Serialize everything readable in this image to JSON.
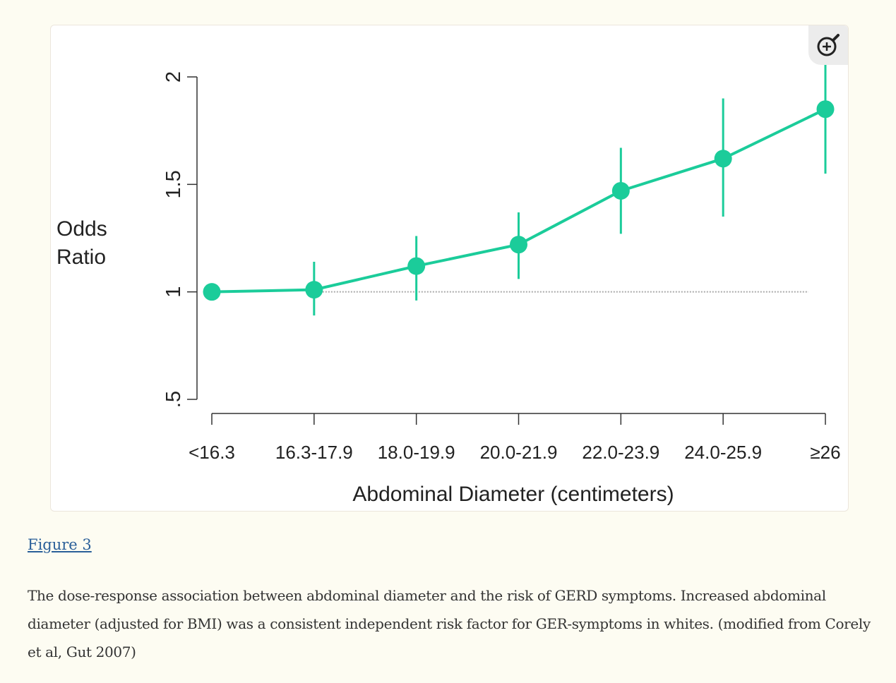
{
  "figure": {
    "link_label": "Figure 3",
    "caption": "The dose-response association between abdominal diameter and the risk of GERD symptoms. Increased abdominal diameter (adjusted for BMI) was a consistent independent risk factor for GER-symptoms in whites. (modified from Corely et al, Gut 2007)",
    "zoom_icon": "zoom-in-icon"
  },
  "chart_data": {
    "type": "line",
    "title": "",
    "xlabel": "Abdominal Diameter (centimeters)",
    "ylabel_lines": [
      "Odds",
      "Ratio"
    ],
    "categories": [
      "<16.3",
      "16.3-17.9",
      "18.0-19.9",
      "20.0-21.9",
      "22.0-23.9",
      "24.0-25.9",
      "≥26"
    ],
    "values": [
      1.0,
      1.01,
      1.12,
      1.22,
      1.47,
      1.62,
      1.85
    ],
    "ci_lower": [
      null,
      0.89,
      0.96,
      1.06,
      1.27,
      1.35,
      1.55
    ],
    "ci_upper": [
      null,
      1.14,
      1.26,
      1.37,
      1.67,
      1.9,
      2.08
    ],
    "yticks": [
      0.5,
      1,
      1.5,
      2
    ],
    "ytick_labels": [
      ".5",
      "1",
      "1.5",
      "2"
    ],
    "ylim": [
      0.5,
      2
    ],
    "reference_line": 1,
    "grid": false,
    "series_color": "#1bcc9a"
  }
}
